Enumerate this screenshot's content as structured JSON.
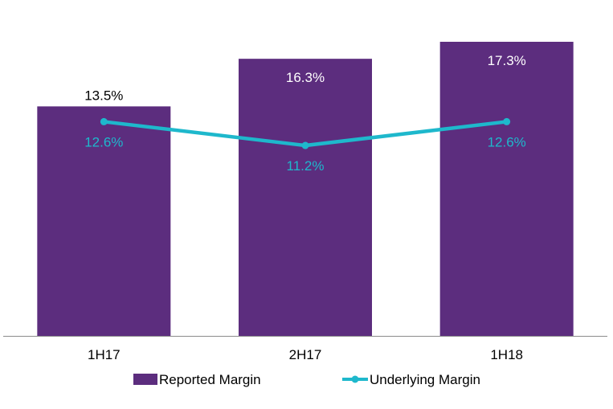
{
  "chart_data": {
    "type": "bar",
    "categories": [
      "1H17",
      "2H17",
      "1H18"
    ],
    "series": [
      {
        "name": "Reported Margin",
        "kind": "bar",
        "values": [
          13.5,
          16.3,
          17.3
        ],
        "labels": [
          "13.5%",
          "16.3%",
          "17.3%"
        ],
        "color": "#5c2d7e"
      },
      {
        "name": "Underlying Margin",
        "kind": "line",
        "values": [
          12.6,
          11.2,
          12.6
        ],
        "labels": [
          "12.6%",
          "11.2%",
          "12.6%"
        ],
        "color": "#1eb8cc"
      }
    ],
    "ylim": [
      0,
      17.3
    ],
    "title": "",
    "xlabel": "",
    "ylabel": "",
    "grid": false,
    "legend": "bottom"
  }
}
